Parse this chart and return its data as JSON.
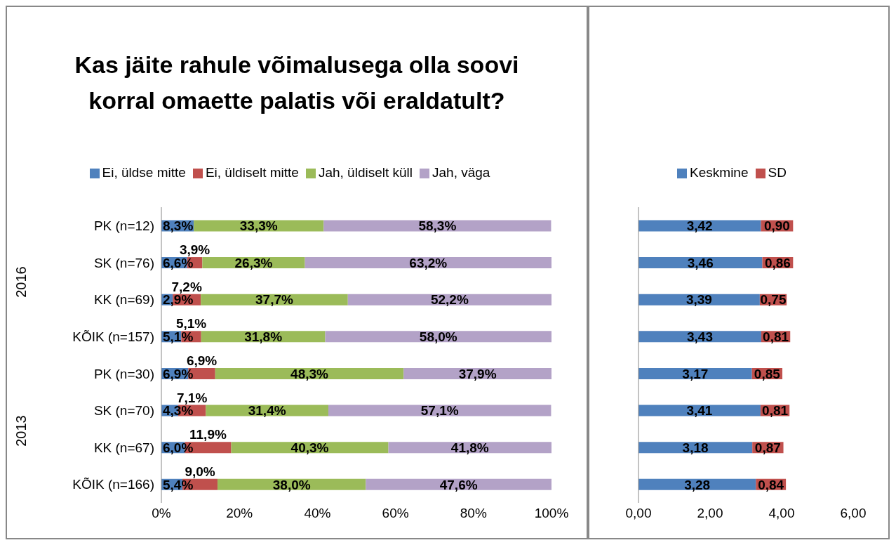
{
  "chart_data": [
    {
      "type": "bar",
      "orientation": "horizontal",
      "stacked": true,
      "title": "Kas jäite rahule võimalusega olla soovi korral omaette palatis või eraldatult?",
      "categories": [
        "PK (n=12)",
        "SK (n=76)",
        "KK (n=69)",
        "KÕIK (n=157)",
        "PK (n=30)",
        "SK (n=70)",
        "KK (n=67)",
        "KÕIK (n=166)"
      ],
      "series": [
        {
          "name": "Ei, üldse mitte",
          "color": "#4f81bd",
          "values": [
            8.3,
            6.6,
            2.9,
            5.1,
            6.9,
            4.3,
            6.0,
            5.4
          ],
          "value_labels": [
            "8,3%",
            "6,6%",
            "2,9%",
            "5,1%",
            "6,9%",
            "4,3%",
            "6,0%",
            "5,4%"
          ]
        },
        {
          "name": "Ei, üldiselt mitte",
          "color": "#c0504d",
          "values": [
            0,
            3.9,
            7.2,
            5.1,
            6.9,
            7.1,
            11.9,
            9.0
          ],
          "value_labels": [
            null,
            "3,9%",
            "7,2%",
            "5,1%",
            "6,9%",
            "7,1%",
            "11,9%",
            "9,0%"
          ]
        },
        {
          "name": "Jah, üldiselt küll",
          "color": "#9bbb59",
          "values": [
            33.3,
            26.3,
            37.7,
            31.8,
            48.3,
            31.4,
            40.3,
            38.0
          ],
          "value_labels": [
            "33,3%",
            "26,3%",
            "37,7%",
            "31,8%",
            "48,3%",
            "31,4%",
            "40,3%",
            "38,0%"
          ]
        },
        {
          "name": "Jah, väga",
          "color": "#b3a2c7",
          "values": [
            58.3,
            63.2,
            52.2,
            58.0,
            37.9,
            57.1,
            41.8,
            47.6
          ],
          "value_labels": [
            "58,3%",
            "63,2%",
            "52,2%",
            "58,0%",
            "37,9%",
            "57,1%",
            "41,8%",
            "47,6%"
          ]
        }
      ],
      "xlim": [
        0,
        100
      ],
      "xticks": [
        {
          "value": 0,
          "label": "0%"
        },
        {
          "value": 20,
          "label": "20%"
        },
        {
          "value": 40,
          "label": "40%"
        },
        {
          "value": 60,
          "label": "60%"
        },
        {
          "value": 80,
          "label": "80%"
        },
        {
          "value": 100,
          "label": "100%"
        }
      ],
      "annotations": [
        "2016",
        "2013"
      ],
      "legend": "top",
      "grid": false
    },
    {
      "type": "bar",
      "orientation": "horizontal",
      "stacked": true,
      "categories": [
        null,
        null,
        null,
        null,
        null,
        null,
        null,
        null
      ],
      "series": [
        {
          "name": "Keskmine",
          "color": "#4f81bd",
          "values": [
            3.42,
            3.46,
            3.39,
            3.43,
            3.17,
            3.41,
            3.18,
            3.28
          ],
          "value_labels": [
            "3,42",
            "3,46",
            "3,39",
            "3,43",
            "3,17",
            "3,41",
            "3,18",
            "3,28"
          ]
        },
        {
          "name": "SD",
          "color": "#c0504d",
          "values": [
            0.9,
            0.86,
            0.75,
            0.81,
            0.85,
            0.81,
            0.87,
            0.84
          ],
          "value_labels": [
            "0,90",
            "0,86",
            "0,75",
            "0,81",
            "0,85",
            "0,81",
            "0,87",
            "0,84"
          ]
        }
      ],
      "xlim": [
        0,
        6
      ],
      "xticks": [
        {
          "value": 0,
          "label": "0,00"
        },
        {
          "value": 2,
          "label": "2,00"
        },
        {
          "value": 4,
          "label": "4,00"
        },
        {
          "value": 6,
          "label": "6,00"
        }
      ],
      "legend": "top",
      "grid": false
    }
  ]
}
